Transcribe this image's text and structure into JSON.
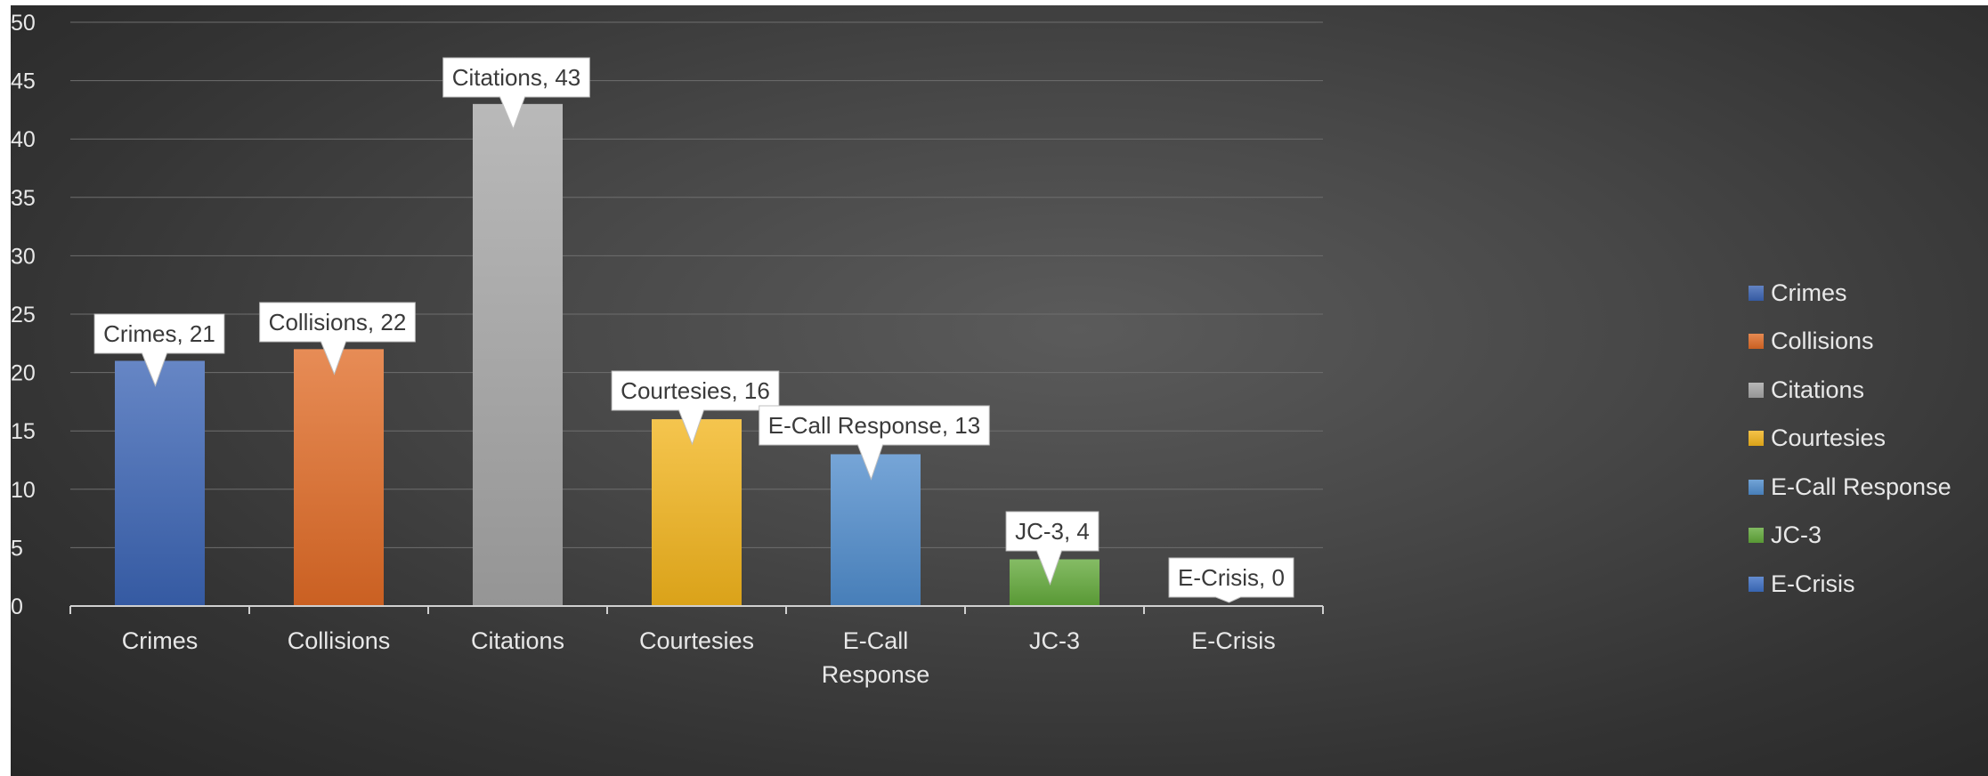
{
  "chart_data": {
    "type": "bar",
    "categories": [
      "Crimes",
      "Collisions",
      "Citations",
      "Courtesies",
      "E-Call Response",
      "JC-3",
      "E-Crisis"
    ],
    "category_axis_lines": [
      [
        "Crimes"
      ],
      [
        "Collisions"
      ],
      [
        "Citations"
      ],
      [
        "Courtesies"
      ],
      [
        "E-Call",
        "Response"
      ],
      [
        "JC-3"
      ],
      [
        "E-Crisis"
      ]
    ],
    "values": [
      21,
      22,
      43,
      16,
      13,
      4,
      0
    ],
    "data_labels": [
      "Crimes, 21",
      "Collisions, 22",
      "Citations, 43",
      "Courtesies, 16",
      "E-Call Response, 13",
      "JC-3, 4",
      "E-Crisis, 0"
    ],
    "colors": [
      "#3b64b4",
      "#e06b26",
      "#a5a5a5",
      "#f2b41c",
      "#4f8ccc",
      "#62a93a",
      "#3d6fc4"
    ],
    "ylim": [
      0,
      50
    ],
    "yticks": [
      "0",
      "5",
      "10",
      "15",
      "20",
      "25",
      "30",
      "35",
      "40",
      "45",
      "50"
    ],
    "grid": true,
    "legend_position": "right",
    "legend": [
      "Crimes",
      "Collisions",
      "Citations",
      "Courtesies",
      "E-Call Response",
      "JC-3",
      "E-Crisis"
    ],
    "title": "",
    "xlabel": "",
    "ylabel": ""
  }
}
